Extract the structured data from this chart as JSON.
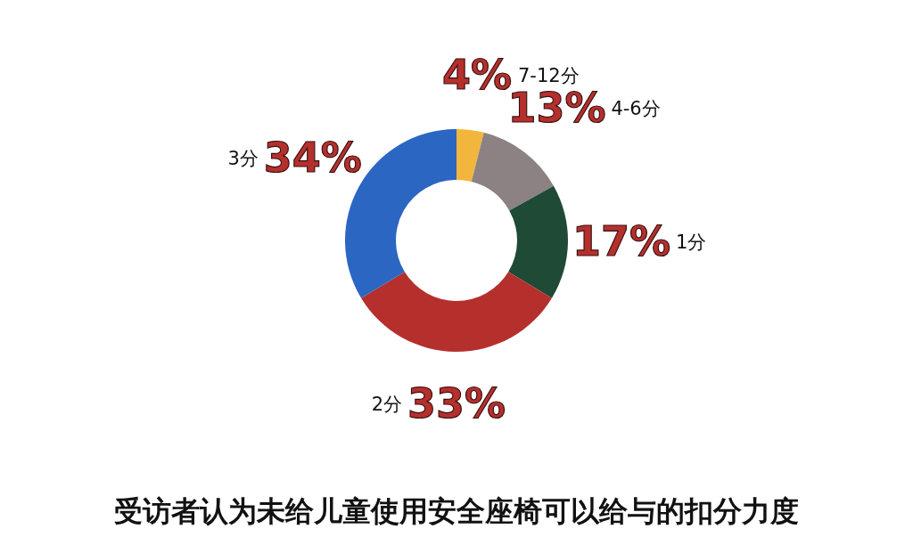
{
  "chart_data": {
    "type": "donut",
    "title": "受访者认为未给儿童使用安全座椅可以给与的扣分力度",
    "categories": [
      "7-12分",
      "4-6分",
      "1分",
      "2分",
      "3分"
    ],
    "values": [
      4,
      13,
      17,
      33,
      34
    ],
    "value_labels": [
      "4%",
      "13%",
      "17%",
      "33%",
      "34%"
    ],
    "colors": [
      "#f2b63c",
      "#8c8283",
      "#1e4a36",
      "#b5302d",
      "#2b66c3"
    ]
  }
}
